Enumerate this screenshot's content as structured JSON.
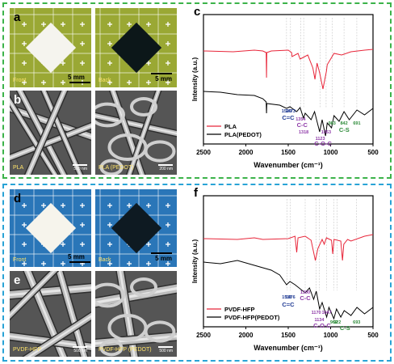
{
  "top": {
    "a": {
      "letter": "a",
      "front_label": "Front",
      "back_label": "Back",
      "scale": "5 mm",
      "board_color": "#9aa834",
      "front_sample_color": "#f5f4ee",
      "back_sample_color": "#0c1719"
    },
    "b": {
      "letter": "b",
      "left_label": "PLA",
      "right_label": "PLA (PEDOT)",
      "left_scale": "500 nm",
      "right_scale": "200 nm"
    },
    "c": {
      "letter": "c",
      "ylabel": "Intensity (a.u.)",
      "xlabel": "Wavenumber (cm⁻¹)",
      "xticks": [
        "2500",
        "2000",
        "1500",
        "1000",
        "500"
      ],
      "legend": [
        {
          "name": "PLA",
          "color": "#e8263a"
        },
        {
          "name": "PLA(PEDOT)",
          "color": "#000000"
        }
      ],
      "peaks": [
        {
          "value": "1520",
          "color": "#1f3a93"
        },
        {
          "value": "1473",
          "color": "#1f3a93"
        },
        {
          "value": "1354",
          "color": "#8e3aa8"
        },
        {
          "value": "1318",
          "color": "#8e3aa8"
        },
        {
          "value": "1123",
          "color": "#8e3aa8"
        },
        {
          "value": "1053",
          "color": "#8e3aa8"
        },
        {
          "value": "983",
          "color": "#2e8b3a"
        },
        {
          "value": "842",
          "color": "#2e8b3a"
        },
        {
          "value": "691",
          "color": "#2e8b3a"
        }
      ],
      "groups": [
        {
          "label": "C=C",
          "color": "#1f3a93"
        },
        {
          "label": "C-C",
          "color": "#8e3aa8"
        },
        {
          "label": "C-O-C",
          "color": "#8e3aa8"
        },
        {
          "label": "C-S",
          "color": "#2e8b3a"
        }
      ]
    }
  },
  "bottom": {
    "d": {
      "letter": "d",
      "front_label": "Front",
      "back_label": "Back",
      "scale": "5 mm",
      "board_color": "#2a76b8",
      "front_sample_color": "#f6f4ec",
      "back_sample_color": "#0e1a22"
    },
    "e": {
      "letter": "e",
      "left_label": "PVDF-HFP",
      "right_label": "PVDF-HFP (PEDOT)",
      "left_scale": "500 nm",
      "right_scale": "500 nm"
    },
    "f": {
      "letter": "f",
      "ylabel": "Intensity (a.u.)",
      "xlabel": "Wavenumber (cm⁻¹)",
      "xticks": [
        "2500",
        "2000",
        "1500",
        "1000",
        "500"
      ],
      "legend": [
        {
          "name": "PVDF-HFP",
          "color": "#e8263a"
        },
        {
          "name": "PVDF-HFP(PEDOT)",
          "color": "#000000"
        }
      ],
      "peaks": [
        {
          "value": "1515",
          "color": "#1f3a93"
        },
        {
          "value": "1476",
          "color": "#1f3a93"
        },
        {
          "value": "1300",
          "color": "#8e3aa8"
        },
        {
          "value": "1170",
          "color": "#8e3aa8"
        },
        {
          "value": "1134",
          "color": "#8e3aa8"
        },
        {
          "value": "1047",
          "color": "#8e3aa8"
        },
        {
          "value": "962",
          "color": "#2e8b3a"
        },
        {
          "value": "922",
          "color": "#2e8b3a"
        },
        {
          "value": "693",
          "color": "#2e8b3a"
        }
      ],
      "groups": [
        {
          "label": "C=C",
          "color": "#1f3a93"
        },
        {
          "label": "C-C",
          "color": "#8e3aa8"
        },
        {
          "label": "C-O-C",
          "color": "#8e3aa8"
        },
        {
          "label": "C-S",
          "color": "#2e8b3a"
        }
      ]
    }
  }
}
